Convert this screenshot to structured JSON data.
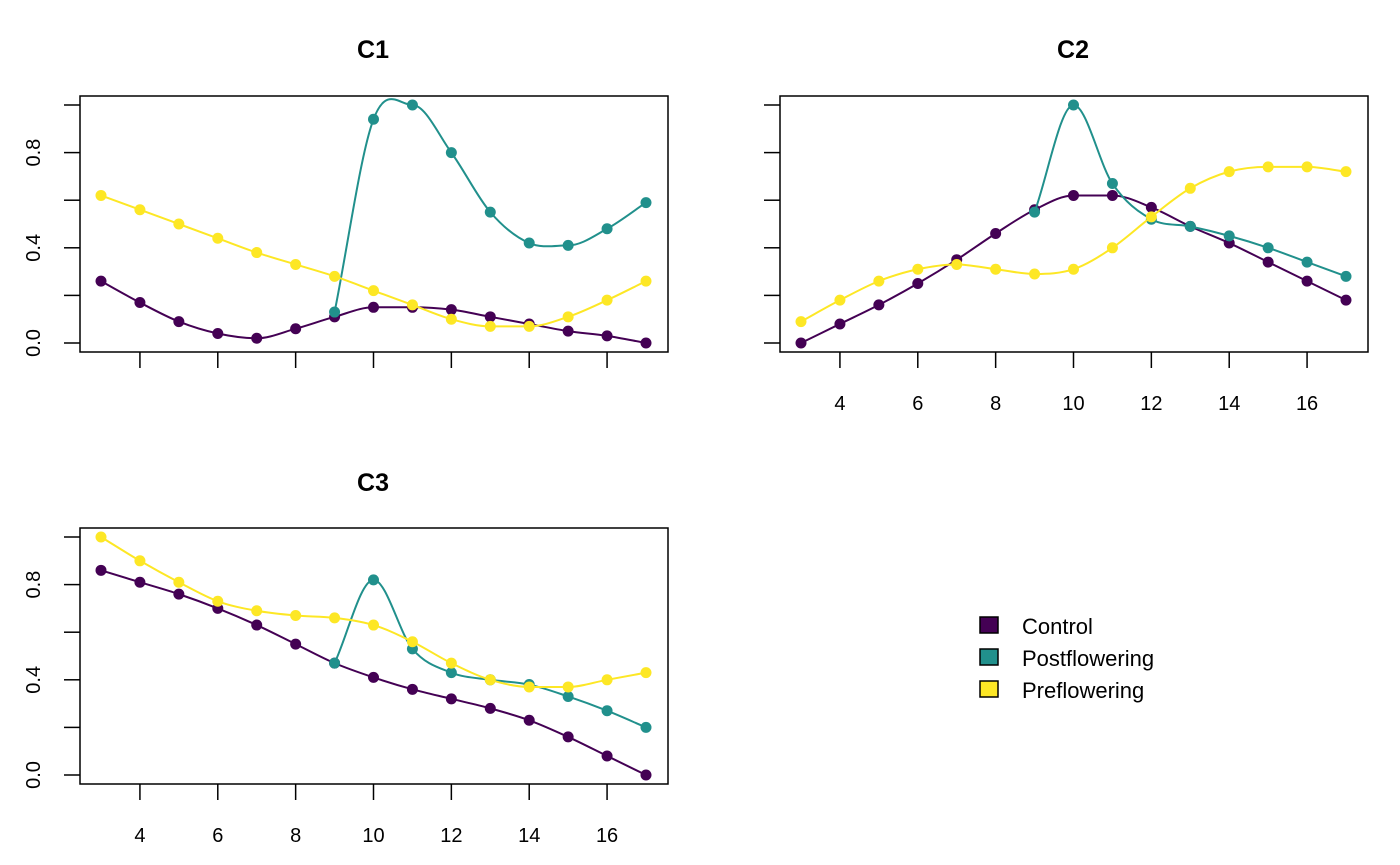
{
  "colors": {
    "Control": "#440154",
    "Postflowering": "#21908C",
    "Preflowering": "#FDE725"
  },
  "legend": [
    "Control",
    "Postflowering",
    "Preflowering"
  ],
  "chart_data": [
    {
      "type": "line",
      "title": "C1",
      "xlabel": "",
      "ylabel": "",
      "xlim": [
        3,
        17
      ],
      "ylim": [
        0,
        1
      ],
      "xticks": [
        4,
        6,
        8,
        10,
        12,
        14,
        16
      ],
      "xtick_labels_shown": false,
      "yticks": [
        0,
        0.2,
        0.4,
        0.6,
        0.8,
        1.0
      ],
      "ytick_labels": [
        "0.0",
        "",
        "0.4",
        "",
        "0.8",
        ""
      ],
      "series": [
        {
          "name": "Control",
          "x": [
            3,
            4,
            5,
            6,
            7,
            8,
            9,
            10,
            11,
            12,
            13,
            14,
            15,
            16,
            17
          ],
          "y": [
            0.26,
            0.17,
            0.09,
            0.04,
            0.02,
            0.06,
            0.11,
            0.15,
            0.15,
            0.14,
            0.11,
            0.08,
            0.05,
            0.03,
            0.0
          ]
        },
        {
          "name": "Postflowering",
          "x": [
            9,
            10,
            11,
            12,
            13,
            14,
            15,
            16,
            17
          ],
          "y": [
            0.13,
            0.94,
            1.0,
            0.8,
            0.55,
            0.42,
            0.41,
            0.48,
            0.59
          ]
        },
        {
          "name": "Preflowering",
          "x": [
            3,
            4,
            5,
            6,
            7,
            8,
            9,
            10,
            11,
            12,
            13,
            14,
            15,
            16,
            17
          ],
          "y": [
            0.62,
            0.56,
            0.5,
            0.44,
            0.38,
            0.33,
            0.28,
            0.22,
            0.16,
            0.1,
            0.07,
            0.07,
            0.11,
            0.18,
            0.26
          ]
        }
      ]
    },
    {
      "type": "line",
      "title": "C2",
      "xlabel": "",
      "ylabel": "",
      "xlim": [
        3,
        17
      ],
      "ylim": [
        0,
        1
      ],
      "xticks": [
        4,
        6,
        8,
        10,
        12,
        14,
        16
      ],
      "xtick_labels": [
        "4",
        "6",
        "8",
        "10",
        "12",
        "14",
        "16"
      ],
      "yticks": [
        0,
        0.2,
        0.4,
        0.6,
        0.8,
        1.0
      ],
      "ytick_labels_shown": false,
      "series": [
        {
          "name": "Control",
          "x": [
            3,
            4,
            5,
            6,
            7,
            8,
            9,
            10,
            11,
            12,
            13,
            14,
            15,
            16,
            17
          ],
          "y": [
            0.0,
            0.08,
            0.16,
            0.25,
            0.35,
            0.46,
            0.56,
            0.62,
            0.62,
            0.57,
            0.49,
            0.42,
            0.34,
            0.26,
            0.18
          ]
        },
        {
          "name": "Postflowering",
          "x": [
            9,
            10,
            11,
            12,
            13,
            14,
            15,
            16,
            17
          ],
          "y": [
            0.55,
            1.0,
            0.67,
            0.52,
            0.49,
            0.45,
            0.4,
            0.34,
            0.28
          ]
        },
        {
          "name": "Preflowering",
          "x": [
            3,
            4,
            5,
            6,
            7,
            8,
            9,
            10,
            11,
            12,
            13,
            14,
            15,
            16,
            17
          ],
          "y": [
            0.09,
            0.18,
            0.26,
            0.31,
            0.33,
            0.31,
            0.29,
            0.31,
            0.4,
            0.53,
            0.65,
            0.72,
            0.74,
            0.74,
            0.72
          ]
        }
      ]
    },
    {
      "type": "line",
      "title": "C3",
      "xlabel": "",
      "ylabel": "",
      "xlim": [
        3,
        17
      ],
      "ylim": [
        0,
        1
      ],
      "xticks": [
        4,
        6,
        8,
        10,
        12,
        14,
        16
      ],
      "xtick_labels": [
        "4",
        "6",
        "8",
        "10",
        "12",
        "14",
        "16"
      ],
      "yticks": [
        0,
        0.2,
        0.4,
        0.6,
        0.8,
        1.0
      ],
      "ytick_labels": [
        "0.0",
        "",
        "0.4",
        "",
        "0.8",
        ""
      ],
      "series": [
        {
          "name": "Control",
          "x": [
            3,
            4,
            5,
            6,
            7,
            8,
            9,
            10,
            11,
            12,
            13,
            14,
            15,
            16,
            17
          ],
          "y": [
            0.86,
            0.81,
            0.76,
            0.7,
            0.63,
            0.55,
            0.47,
            0.41,
            0.36,
            0.32,
            0.28,
            0.23,
            0.16,
            0.08,
            0.0
          ]
        },
        {
          "name": "Postflowering",
          "x": [
            9,
            10,
            11,
            12,
            13,
            14,
            15,
            16,
            17
          ],
          "y": [
            0.47,
            0.82,
            0.53,
            0.43,
            0.4,
            0.38,
            0.33,
            0.27,
            0.2
          ]
        },
        {
          "name": "Preflowering",
          "x": [
            3,
            4,
            5,
            6,
            7,
            8,
            9,
            10,
            11,
            12,
            13,
            14,
            15,
            16,
            17
          ],
          "y": [
            1.0,
            0.9,
            0.81,
            0.73,
            0.69,
            0.67,
            0.66,
            0.63,
            0.56,
            0.47,
            0.4,
            0.37,
            0.37,
            0.4,
            0.43
          ]
        }
      ]
    }
  ]
}
